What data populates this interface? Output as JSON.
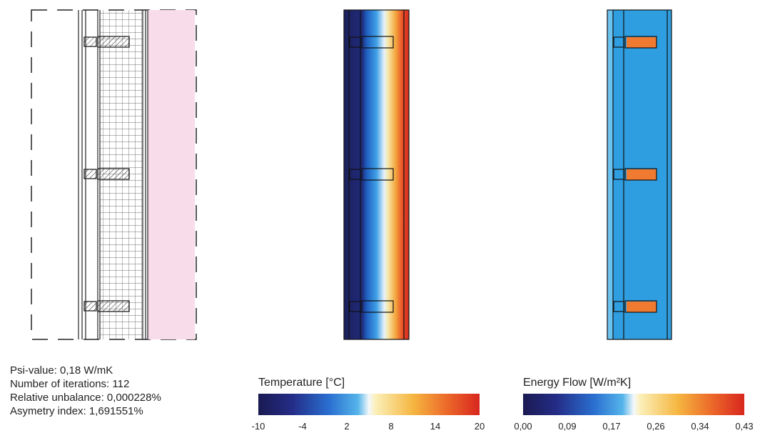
{
  "results": [
    "Psi-value: 0,18 W/mK",
    "Number of iterations: 112",
    "Relative unbalance: 0,000228%",
    "Asymetry index: 1,691551%"
  ],
  "legends": [
    {
      "title": "Temperature [°C]",
      "ticks": [
        "-10",
        "-4",
        "2",
        "8",
        "14",
        "20"
      ]
    },
    {
      "title": "Energy Flow [W/m²K]",
      "ticks": [
        "0,00",
        "0,09",
        "0,17",
        "0,26",
        "0,34",
        "0,43"
      ]
    }
  ]
}
